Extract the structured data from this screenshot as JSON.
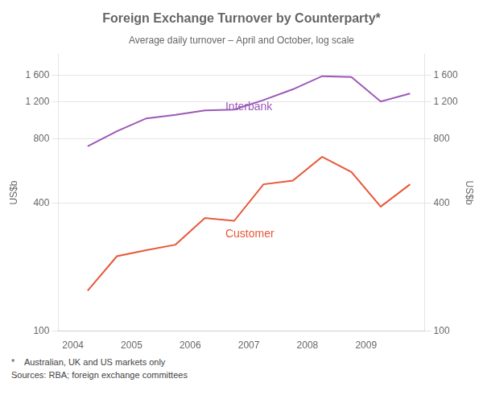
{
  "chart_data": {
    "type": "line",
    "title": "Foreign Exchange Turnover by Counterparty*",
    "subtitle": "Average daily turnover – April and October, log scale",
    "ylabel": "US$b",
    "y2label": "US$b",
    "footnotes": [
      "*    Australian, UK and US markets only",
      "Sources: RBA; foreign exchange committees"
    ],
    "x": [
      2004.25,
      2004.75,
      2005.25,
      2005.75,
      2006.25,
      2006.75,
      2007.25,
      2007.75,
      2008.25,
      2008.75,
      2009.25,
      2009.75
    ],
    "series": [
      {
        "color": "#9B59B6",
        "values": [
          740,
          870,
          1000,
          1040,
          1090,
          1100,
          1220,
          1370,
          1580,
          1565,
          1200,
          1310
        ]
      },
      {
        "color": "#E8583A",
        "values": [
          155,
          225,
          240,
          255,
          340,
          330,
          490,
          510,
          660,
          560,
          385,
          490
        ]
      }
    ],
    "annotations": [
      {
        "text": "Interbank",
        "x": 2006.6,
        "y": 1130,
        "color": "#9B59B6"
      },
      {
        "text": "Customer",
        "x": 2006.6,
        "y": 285,
        "color": "#E8583A"
      }
    ],
    "log": "y",
    "grid": "y",
    "xlim": [
      2003.75,
      2010.0
    ],
    "xticks": [
      2004,
      2005,
      2006,
      2007,
      2008,
      2009
    ],
    "ylim": [
      100,
      2000
    ],
    "yticks": [
      100,
      400,
      800,
      {
        "value": 1200,
        "label": "1 200"
      },
      {
        "value": 1600,
        "label": "1 600"
      }
    ],
    "y2lim": [
      100,
      2000
    ],
    "y2ticks": [
      100,
      400,
      800,
      {
        "value": 1200,
        "label": "1 200"
      },
      {
        "value": 1600,
        "label": "1 600"
      }
    ]
  }
}
